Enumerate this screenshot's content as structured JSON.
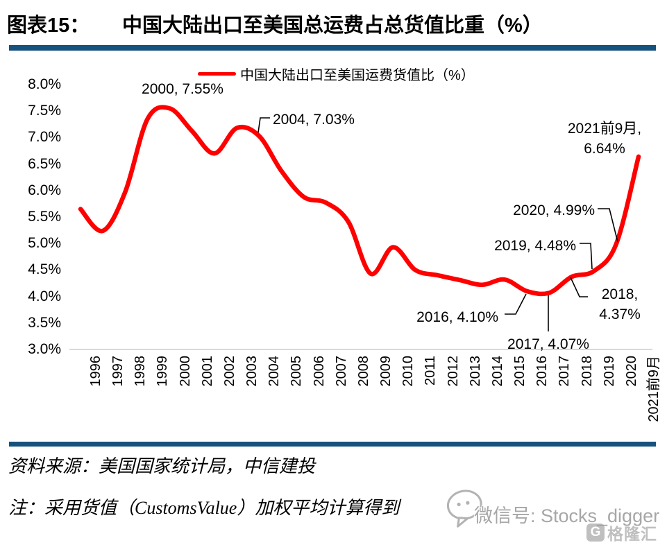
{
  "header": {
    "figure_label": "图表15：",
    "title": "中国大陆出口至美国总运费占总货值比重（%）"
  },
  "chart_data": {
    "type": "line",
    "title": "中国大陆出口至美国总运费占总货值比重（%）",
    "legend_position": "top",
    "grid": false,
    "xlabel": "",
    "ylabel": "",
    "ylim": [
      3.0,
      8.0
    ],
    "y_ticks": [
      "8.0%",
      "7.5%",
      "7.0%",
      "6.5%",
      "6.0%",
      "5.5%",
      "5.0%",
      "4.5%",
      "4.0%",
      "3.5%",
      "3.0%"
    ],
    "categories": [
      "1996",
      "1997",
      "1998",
      "1999",
      "2000",
      "2001",
      "2002",
      "2003",
      "2004",
      "2005",
      "2006",
      "2007",
      "2008",
      "2009",
      "2010",
      "2011",
      "2012",
      "2013",
      "2014",
      "2015",
      "2016",
      "2017",
      "2018",
      "2019",
      "2020",
      "2021前9月"
    ],
    "series": [
      {
        "name": "中国大陆出口至美国运费货值比（%）",
        "color": "#ff0000",
        "values": [
          5.65,
          5.24,
          5.97,
          7.35,
          7.55,
          7.12,
          6.7,
          7.18,
          7.03,
          6.37,
          5.88,
          5.77,
          5.41,
          4.43,
          4.93,
          4.5,
          4.4,
          4.31,
          4.22,
          4.32,
          4.1,
          4.07,
          4.37,
          4.48,
          4.99,
          6.64
        ]
      }
    ],
    "annotations": [
      {
        "lines": [
          "2000, 7.55%"
        ],
        "year": "2000",
        "value": 7.55
      },
      {
        "lines": [
          "2004, 7.03%"
        ],
        "year": "2004",
        "value": 7.03
      },
      {
        "lines": [
          "2021前9月,",
          "6.64%"
        ],
        "year": "2021前9月",
        "value": 6.64
      },
      {
        "lines": [
          "2020, 4.99%"
        ],
        "year": "2020",
        "value": 4.99
      },
      {
        "lines": [
          "2019, 4.48%"
        ],
        "year": "2019",
        "value": 4.48
      },
      {
        "lines": [
          "2018,",
          "4.37%"
        ],
        "year": "2018",
        "value": 4.37
      },
      {
        "lines": [
          "2016, 4.10%"
        ],
        "year": "2016",
        "value": 4.1
      },
      {
        "lines": [
          "2017, 4.07%"
        ],
        "year": "2017",
        "value": 4.07
      }
    ]
  },
  "footer": {
    "source": "资料来源：美国国家统计局，中信建投",
    "note": "注：采用货值（CustomsValue）加权平均计算得到"
  },
  "watermark": {
    "wechat_text": "微信号: Stocks_digger",
    "logo_letter": "G",
    "logo_text": "格隆汇"
  },
  "colors": {
    "divider": "#17517E",
    "line": "#ff0000",
    "axis_line": "#d9d9d9",
    "annotation_leader": "#000000"
  }
}
